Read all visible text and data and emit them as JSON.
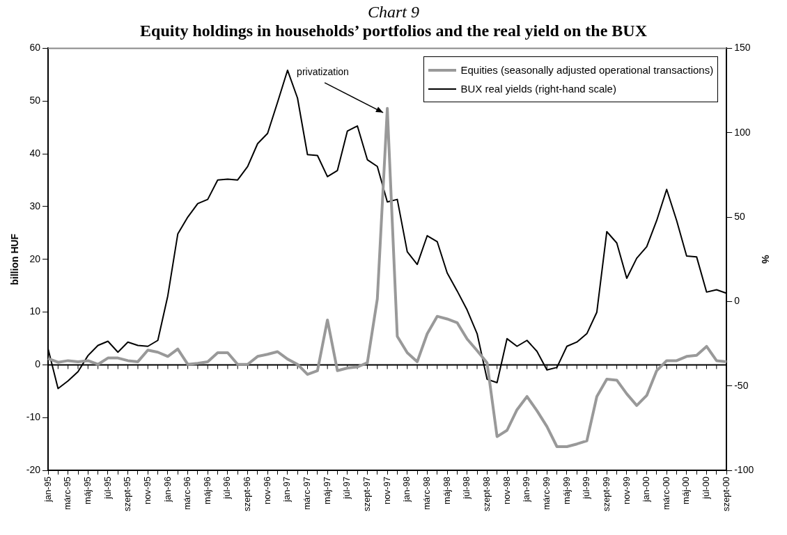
{
  "chart_data": {
    "type": "line",
    "title": "Chart 9",
    "subtitle": "Equity holdings in households’ portfolios and the real yield on the BUX",
    "ylabel": "billion HUF",
    "y2label": "%",
    "categories": [
      "jan-95",
      null,
      "márc-95",
      null,
      "máj-95",
      null,
      "júl-95",
      null,
      "szept-95",
      null,
      "nov-95",
      null,
      "jan-96",
      null,
      "márc-96",
      null,
      "máj-96",
      null,
      "júl-96",
      null,
      "szept-96",
      null,
      "nov-96",
      null,
      "jan-97",
      null,
      "márc-97",
      null,
      "máj-97",
      null,
      "júl-97",
      null,
      "szept-97",
      null,
      "nov-97",
      null,
      "jan-98",
      null,
      "márc-98",
      null,
      "máj-98",
      null,
      "júl-98",
      null,
      "szept-98",
      null,
      "nov-98",
      null,
      "jan-99",
      null,
      "márc-99",
      null,
      "máj-99",
      null,
      "júl-99",
      null,
      "szept-99",
      null,
      "nov-99",
      null,
      "jan-00",
      null,
      "márc-00",
      null,
      "máj-00",
      null,
      "júl-00",
      null,
      "szept-00"
    ],
    "series": [
      {
        "name": "Equities (seasonally adjusted operational transactions)",
        "color": "#999999",
        "values": [
          1.2,
          0.5,
          0.8,
          0.6,
          0.8,
          0.1,
          1.3,
          1.3,
          0.8,
          0.6,
          2.8,
          2.4,
          1.6,
          3.0,
          0.1,
          0.3,
          0.6,
          2.3,
          2.3,
          0.1,
          0.1,
          1.6,
          2.0,
          2.5,
          1.1,
          0.1,
          -1.8,
          -1.1,
          8.5,
          -1.1,
          -0.6,
          -0.4,
          0.4,
          12.5,
          48.6,
          5.4,
          2.3,
          0.6,
          5.9,
          9.2,
          8.7,
          8.0,
          4.9,
          2.7,
          0.4,
          -13.6,
          -12.4,
          -8.5,
          -6.0,
          -8.7,
          -11.7,
          -15.5,
          -15.5,
          -15.0,
          -14.4,
          -6.0,
          -2.7,
          -2.9,
          -5.5,
          -7.7,
          -5.8,
          -1.1,
          0.8,
          0.8,
          1.6,
          1.8,
          3.5,
          0.8,
          0.6
        ]
      },
      {
        "name": "BUX real yields (right-hand scale)",
        "color": "#000000",
        "axis": "y2",
        "values": [
          -28,
          -51.5,
          -47,
          -41.5,
          -32,
          -26,
          -23.5,
          -30,
          -24,
          -26,
          -26.5,
          -23,
          3.4,
          40,
          50,
          58,
          60.5,
          72,
          72.5,
          72,
          80,
          93.5,
          99.6,
          118,
          137,
          120.5,
          87,
          86.5,
          74,
          77.6,
          101,
          104,
          84,
          80,
          59,
          60.5,
          29.5,
          22,
          39,
          35.5,
          17,
          6.3,
          -5,
          -19,
          -46,
          -48,
          -22,
          -26.5,
          -23,
          -29.5,
          -40.5,
          -39,
          -26.5,
          -24,
          -19,
          -6.3,
          41.4,
          34.7,
          13.8,
          25.7,
          32.5,
          48,
          66.4,
          48,
          27,
          26.5,
          5.6,
          7,
          4.9
        ]
      }
    ],
    "ylim": [
      -20,
      60
    ],
    "yticks": [
      -20,
      -10,
      0,
      10,
      20,
      30,
      40,
      50,
      60
    ],
    "y2lim": [
      -100,
      150
    ],
    "y2ticks": [
      -100,
      -50,
      0,
      50,
      100,
      150
    ],
    "legend": "top right",
    "annotations": [
      {
        "text": "privatization",
        "x": "nov-97",
        "y": 48.6
      }
    ]
  }
}
